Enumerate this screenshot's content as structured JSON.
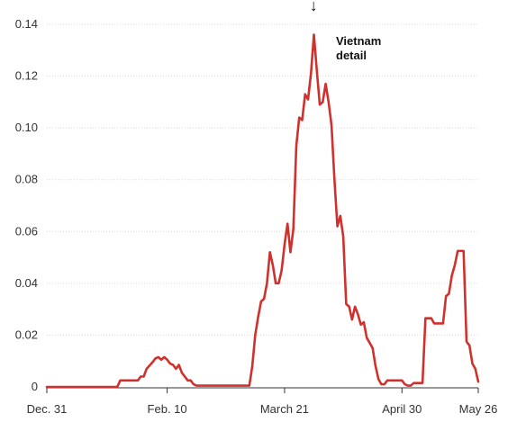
{
  "chart_data": {
    "type": "line",
    "title": "",
    "xlabel": "",
    "ylabel": "",
    "ylim": [
      0,
      0.14
    ],
    "xlim": [
      "2019-12-31",
      "2020-05-26"
    ],
    "yticks": [
      {
        "value": 0,
        "label": "0"
      },
      {
        "value": 0.02,
        "label": "0.02"
      },
      {
        "value": 0.04,
        "label": "0.04"
      },
      {
        "value": 0.06,
        "label": "0.06"
      },
      {
        "value": 0.08,
        "label": "0.08"
      },
      {
        "value": 0.1,
        "label": "0.10"
      },
      {
        "value": 0.12,
        "label": "0.12"
      },
      {
        "value": 0.14,
        "label": "0.14"
      }
    ],
    "xticks": [
      {
        "date": "2019-12-31",
        "label": "Dec. 31"
      },
      {
        "date": "2020-02-10",
        "label": "Feb. 10"
      },
      {
        "date": "2020-03-21",
        "label": "March 21"
      },
      {
        "date": "2020-04-30",
        "label": "April 30"
      },
      {
        "date": "2020-05-26",
        "label": "May 26"
      }
    ],
    "grid": "horizontal",
    "line_color": "#d0312d",
    "annotation": {
      "lines": [
        "Vietnam",
        "detail"
      ],
      "date": "2020-03-30",
      "arrow": "↓"
    },
    "series": [
      {
        "points": [
          [
            "2019-12-31",
            0
          ],
          [
            "2020-01-24",
            0
          ],
          [
            "2020-01-25",
            0.0025
          ],
          [
            "2020-01-31",
            0.0025
          ],
          [
            "2020-02-01",
            0.004
          ],
          [
            "2020-02-02",
            0.004
          ],
          [
            "2020-02-03",
            0.007
          ],
          [
            "2020-02-05",
            0.0095
          ],
          [
            "2020-02-06",
            0.011
          ],
          [
            "2020-02-07",
            0.0115
          ],
          [
            "2020-02-08",
            0.0105
          ],
          [
            "2020-02-09",
            0.0115
          ],
          [
            "2020-02-10",
            0.0105
          ],
          [
            "2020-02-11",
            0.009
          ],
          [
            "2020-02-12",
            0.0085
          ],
          [
            "2020-02-13",
            0.007
          ],
          [
            "2020-02-14",
            0.0085
          ],
          [
            "2020-02-15",
            0.0055
          ],
          [
            "2020-02-16",
            0.004
          ],
          [
            "2020-02-17",
            0.0025
          ],
          [
            "2020-02-18",
            0.0025
          ],
          [
            "2020-02-19",
            0.001
          ],
          [
            "2020-02-20",
            0.0005
          ],
          [
            "2020-03-09",
            0.0005
          ],
          [
            "2020-03-10",
            0.008
          ],
          [
            "2020-03-11",
            0.02
          ],
          [
            "2020-03-12",
            0.027
          ],
          [
            "2020-03-13",
            0.033
          ],
          [
            "2020-03-14",
            0.034
          ],
          [
            "2020-03-15",
            0.04
          ],
          [
            "2020-03-16",
            0.052
          ],
          [
            "2020-03-17",
            0.047
          ],
          [
            "2020-03-18",
            0.04
          ],
          [
            "2020-03-19",
            0.04
          ],
          [
            "2020-03-20",
            0.045
          ],
          [
            "2020-03-21",
            0.055
          ],
          [
            "2020-03-22",
            0.063
          ],
          [
            "2020-03-23",
            0.052
          ],
          [
            "2020-03-24",
            0.061
          ],
          [
            "2020-03-25",
            0.093
          ],
          [
            "2020-03-26",
            0.104
          ],
          [
            "2020-03-27",
            0.103
          ],
          [
            "2020-03-28",
            0.113
          ],
          [
            "2020-03-29",
            0.111
          ],
          [
            "2020-03-30",
            0.121
          ],
          [
            "2020-03-31",
            0.136
          ],
          [
            "2020-04-01",
            0.122
          ],
          [
            "2020-04-02",
            0.109
          ],
          [
            "2020-04-03",
            0.11
          ],
          [
            "2020-04-04",
            0.117
          ],
          [
            "2020-04-05",
            0.11
          ],
          [
            "2020-04-06",
            0.101
          ],
          [
            "2020-04-07",
            0.08
          ],
          [
            "2020-04-08",
            0.062
          ],
          [
            "2020-04-09",
            0.066
          ],
          [
            "2020-04-10",
            0.058
          ],
          [
            "2020-04-11",
            0.032
          ],
          [
            "2020-04-12",
            0.031
          ],
          [
            "2020-04-13",
            0.026
          ],
          [
            "2020-04-14",
            0.031
          ],
          [
            "2020-04-15",
            0.028
          ],
          [
            "2020-04-16",
            0.024
          ],
          [
            "2020-04-17",
            0.025
          ],
          [
            "2020-04-18",
            0.019
          ],
          [
            "2020-04-19",
            0.017
          ],
          [
            "2020-04-20",
            0.015
          ],
          [
            "2020-04-21",
            0.008
          ],
          [
            "2020-04-22",
            0.003
          ],
          [
            "2020-04-23",
            0.001
          ],
          [
            "2020-04-24",
            0.001
          ],
          [
            "2020-04-25",
            0.0025
          ],
          [
            "2020-04-30",
            0.0025
          ],
          [
            "2020-05-01",
            0.001
          ],
          [
            "2020-05-02",
            0.0005
          ],
          [
            "2020-05-03",
            0.0005
          ],
          [
            "2020-05-04",
            0.0015
          ],
          [
            "2020-05-07",
            0.0015
          ],
          [
            "2020-05-08",
            0.0265
          ],
          [
            "2020-05-09",
            0.0265
          ],
          [
            "2020-05-10",
            0.0265
          ],
          [
            "2020-05-11",
            0.0245
          ],
          [
            "2020-05-14",
            0.0245
          ],
          [
            "2020-05-15",
            0.035
          ],
          [
            "2020-05-16",
            0.036
          ],
          [
            "2020-05-17",
            0.043
          ],
          [
            "2020-05-18",
            0.047
          ],
          [
            "2020-05-19",
            0.0525
          ],
          [
            "2020-05-21",
            0.0525
          ],
          [
            "2020-05-22",
            0.0175
          ],
          [
            "2020-05-23",
            0.016
          ],
          [
            "2020-05-24",
            0.009
          ],
          [
            "2020-05-25",
            0.007
          ],
          [
            "2020-05-26",
            0.002
          ]
        ]
      }
    ]
  }
}
